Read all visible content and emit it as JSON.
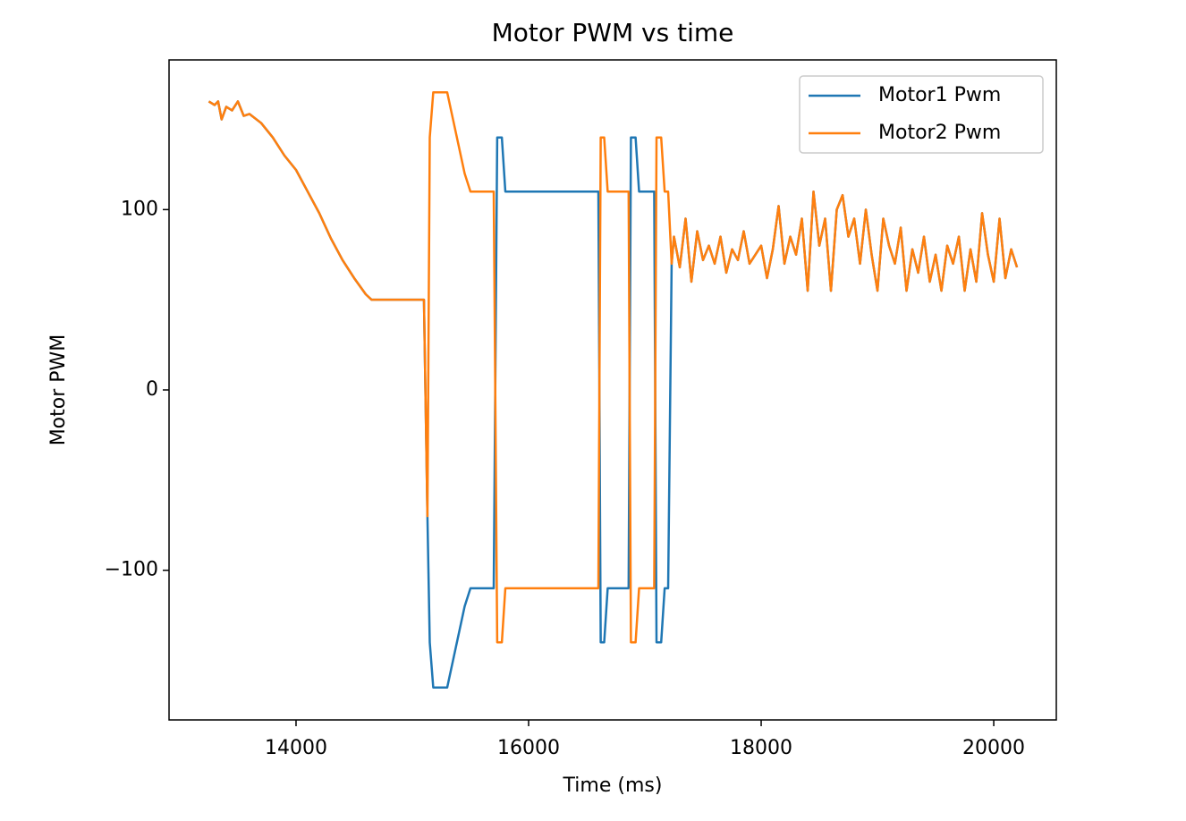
{
  "chart_data": {
    "type": "line",
    "title": "Motor PWM vs time",
    "x_label": "Time (ms)",
    "y_label": "Motor PWM",
    "x": [
      13250,
      13300,
      13330,
      13360,
      13400,
      13450,
      13500,
      13550,
      13600,
      13700,
      13800,
      13900,
      14000,
      14100,
      14200,
      14300,
      14400,
      14500,
      14600,
      14650,
      15100,
      15130,
      15150,
      15180,
      15300,
      15350,
      15400,
      15450,
      15500,
      15700,
      15730,
      15770,
      15800,
      16600,
      16620,
      16650,
      16680,
      16860,
      16880,
      16920,
      16950,
      17080,
      17100,
      17140,
      17170,
      17200,
      17230,
      17250,
      17300,
      17350,
      17400,
      17450,
      17500,
      17550,
      17600,
      17650,
      17700,
      17750,
      17800,
      17850,
      17900,
      17950,
      18000,
      18050,
      18100,
      18150,
      18200,
      18250,
      18300,
      18350,
      18400,
      18450,
      18500,
      18550,
      18600,
      18650,
      18700,
      18750,
      18800,
      18850,
      18900,
      18950,
      19000,
      19050,
      19100,
      19150,
      19200,
      19250,
      19300,
      19350,
      19400,
      19450,
      19500,
      19550,
      19600,
      19650,
      19700,
      19750,
      19800,
      19850,
      19900,
      19950,
      20000,
      20050,
      20100,
      20150,
      20200
    ],
    "series": [
      {
        "name": "Motor1 Pwm",
        "color": "#1f77b4",
        "values": [
          160,
          158,
          160,
          150,
          157,
          155,
          160,
          152,
          153,
          148,
          140,
          130,
          122,
          110,
          98,
          84,
          72,
          62,
          53,
          50,
          50,
          -70,
          -140,
          -165,
          -165,
          -150,
          -135,
          -120,
          -110,
          -110,
          140,
          140,
          110,
          110,
          -140,
          -140,
          -110,
          -110,
          140,
          140,
          110,
          110,
          -140,
          -140,
          -110,
          -110,
          70,
          85,
          68,
          95,
          60,
          88,
          72,
          80,
          70,
          85,
          65,
          78,
          72,
          88,
          70,
          75,
          80,
          62,
          78,
          102,
          70,
          85,
          75,
          95,
          55,
          110,
          80,
          95,
          55,
          100,
          108,
          85,
          95,
          70,
          100,
          75,
          55,
          95,
          80,
          70,
          90,
          55,
          78,
          65,
          85,
          60,
          75,
          55,
          80,
          70,
          85,
          55,
          78,
          60,
          98,
          75,
          60,
          95,
          62,
          78,
          68
        ]
      },
      {
        "name": "Motor2 Pwm",
        "color": "#ff7f0e",
        "values": [
          160,
          158,
          160,
          150,
          157,
          155,
          160,
          152,
          153,
          148,
          140,
          130,
          122,
          110,
          98,
          84,
          72,
          62,
          53,
          50,
          50,
          -70,
          140,
          165,
          165,
          150,
          135,
          120,
          110,
          110,
          -140,
          -140,
          -110,
          -110,
          140,
          140,
          110,
          110,
          -140,
          -140,
          -110,
          -110,
          140,
          140,
          110,
          110,
          70,
          85,
          68,
          95,
          60,
          88,
          72,
          80,
          70,
          85,
          65,
          78,
          72,
          88,
          70,
          75,
          80,
          62,
          78,
          102,
          70,
          85,
          75,
          95,
          55,
          110,
          80,
          95,
          55,
          100,
          108,
          85,
          95,
          70,
          100,
          75,
          55,
          95,
          80,
          70,
          90,
          55,
          78,
          65,
          85,
          60,
          75,
          55,
          80,
          70,
          85,
          55,
          78,
          60,
          98,
          75,
          60,
          95,
          62,
          78,
          68
        ]
      }
    ],
    "xlim": [
      12908,
      20538
    ],
    "ylim": [
      -183,
      183
    ],
    "xticks": [
      14000,
      16000,
      18000,
      20000
    ],
    "yticks": [
      {
        "value": -100,
        "label": "−100"
      },
      0,
      100
    ],
    "legend": "upper right"
  }
}
